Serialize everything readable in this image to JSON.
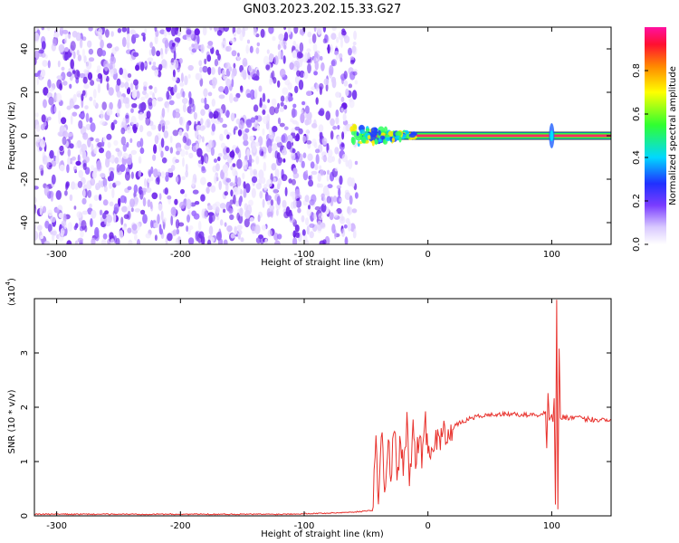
{
  "title": "GN03.2023.202.15.33.G27",
  "chart_data": [
    {
      "type": "heatmap",
      "xlabel": "Height of straight line (km)",
      "ylabel": "Frequency (Hz)",
      "xlim": [
        -318,
        148
      ],
      "ylim": [
        -50,
        50
      ],
      "xticks": [
        -300,
        -200,
        -100,
        0,
        100
      ],
      "yticks": [
        -40,
        -20,
        0,
        20,
        40
      ],
      "noise_region_x": [
        -318,
        -62
      ],
      "signal_band": {
        "x": [
          -62,
          148
        ],
        "center_frequency": 0,
        "note_points": [
          {
            "x": -58,
            "amplitude": 0.25
          },
          {
            "x": -50,
            "amplitude": 0.35
          },
          {
            "x": -40,
            "amplitude": 0.55
          },
          {
            "x": -30,
            "amplitude": 0.6
          },
          {
            "x": -20,
            "amplitude": 0.7
          },
          {
            "x": 0,
            "amplitude": 0.8
          },
          {
            "x": 50,
            "amplitude": 0.9
          },
          {
            "x": 100,
            "amplitude": 0.9
          },
          {
            "x": 148,
            "amplitude": 0.9
          }
        ]
      },
      "colorbar": {
        "label": "Normalized spectral amplitude",
        "range": [
          0,
          1
        ],
        "ticks": [
          "0.0",
          "0.2",
          "0.4",
          "0.6",
          "0.8"
        ]
      },
      "grid": false
    },
    {
      "type": "line",
      "xlabel": "Height of straight line (km)",
      "ylabel": "SNR (10 * v/v)",
      "scale_label": "(x10",
      "scale_exponent": "4",
      "xlim": [
        -318,
        148
      ],
      "ylim": [
        0,
        4
      ],
      "xticks": [
        -300,
        -200,
        -100,
        0,
        100
      ],
      "yticks": [
        0,
        1,
        2,
        3
      ],
      "color": "#e8312c",
      "series": [
        {
          "x": [
            -318,
            -280,
            -240,
            -200,
            -160,
            -120,
            -80,
            -60,
            -45,
            -42,
            -40,
            -37,
            -35,
            -32,
            -30,
            -27,
            -25,
            -22,
            -20,
            -17,
            -15,
            -12,
            -10,
            -7,
            -5,
            -2,
            0,
            5,
            10,
            15,
            20,
            25,
            30,
            35,
            40,
            50,
            60,
            70,
            80,
            90,
            95,
            96,
            97,
            98,
            100,
            101,
            102,
            103,
            104,
            105,
            106,
            107,
            110,
            120,
            130,
            140,
            148
          ],
          "y": [
            0.03,
            0.03,
            0.03,
            0.03,
            0.03,
            0.03,
            0.05,
            0.07,
            0.1,
            1.3,
            0.4,
            1.6,
            0.3,
            1.4,
            0.6,
            1.8,
            0.5,
            1.5,
            0.8,
            1.7,
            0.7,
            1.6,
            1.0,
            1.5,
            1.1,
            1.7,
            1.25,
            1.35,
            1.45,
            1.55,
            1.62,
            1.7,
            1.75,
            1.8,
            1.83,
            1.86,
            1.87,
            1.87,
            1.86,
            1.86,
            1.9,
            1.2,
            2.3,
            1.8,
            1.9,
            1.7,
            2.2,
            0.25,
            4.0,
            0.15,
            3.1,
            1.8,
            1.82,
            1.8,
            1.78,
            1.77,
            1.78
          ]
        }
      ],
      "grid": false
    }
  ]
}
